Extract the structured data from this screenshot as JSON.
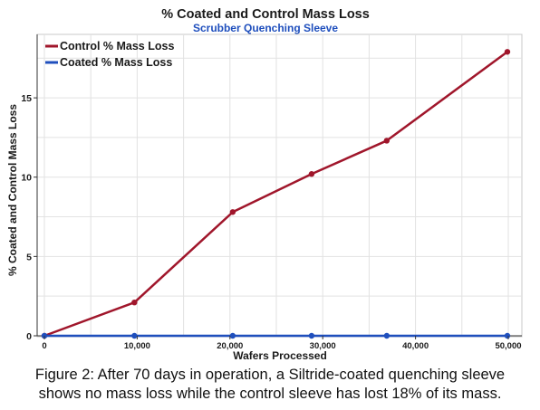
{
  "chart_data": {
    "type": "line",
    "title": "% Coated and Control Mass Loss",
    "subtitle": "Scrubber Quenching Sleeve",
    "xlabel": "Wafers Processed",
    "ylabel": "% Coated and Control Mass Loss",
    "xlim": [
      0,
      50000
    ],
    "ylim": [
      0,
      19
    ],
    "x_ticks": [
      0,
      10000,
      20000,
      30000,
      40000,
      50000
    ],
    "x_tick_labels": [
      "0",
      "10,000",
      "20,000",
      "30,000",
      "40,000",
      "50,000"
    ],
    "y_ticks": [
      0,
      5,
      10,
      15
    ],
    "y_tick_labels": [
      "0",
      "5",
      "10",
      "15"
    ],
    "grid": true,
    "legend_position": "top-left",
    "series": [
      {
        "name": "Control % Mass Loss",
        "color": "#a0162b",
        "x": [
          0,
          9700,
          20300,
          28800,
          36900,
          49900
        ],
        "y": [
          0,
          2.1,
          7.8,
          10.2,
          12.3,
          17.9
        ]
      },
      {
        "name": "Coated % Mass Loss",
        "color": "#1f4fbd",
        "x": [
          0,
          9700,
          20300,
          28800,
          36900,
          49900
        ],
        "y": [
          0,
          0,
          0,
          0,
          0,
          0
        ]
      }
    ]
  },
  "caption": {
    "line1": "Figure 2: After 70 days in operation, a Siltride-coated quenching sleeve",
    "line2": "shows no mass loss while the control sleeve has lost 18% of its mass."
  },
  "colors": {
    "title": "#1a1a1a",
    "subtitle": "#1f4fbd",
    "grid": "#e2e2e2",
    "axis": "#333333"
  }
}
